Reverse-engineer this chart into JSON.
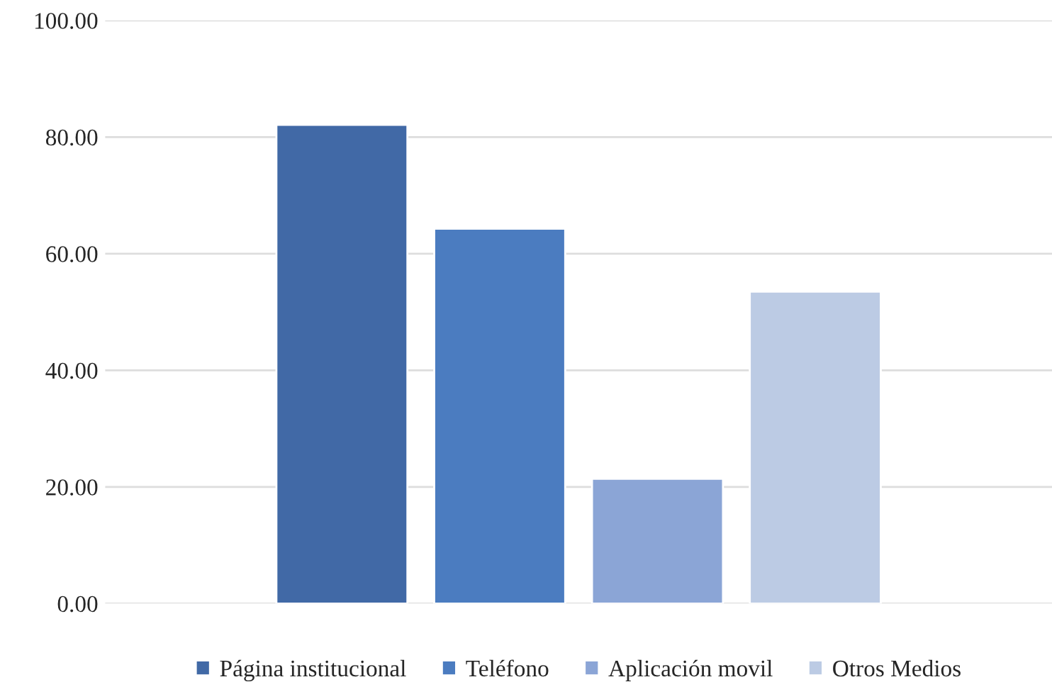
{
  "chart_data": {
    "type": "bar",
    "categories": [
      null
    ],
    "series": [
      {
        "name": "Página institucional",
        "color": "#4169a6",
        "values": [
          82.1
        ]
      },
      {
        "name": "Teléfono",
        "color": "#4b7cc0",
        "values": [
          64.3
        ]
      },
      {
        "name": "Aplicación movil",
        "color": "#8ba5d6",
        "values": [
          21.4
        ]
      },
      {
        "name": "Otros Medios",
        "color": "#bccbe4",
        "values": [
          53.5
        ]
      }
    ],
    "ylim": [
      0,
      100
    ],
    "yticks": [
      {
        "value": 0,
        "label": "0.00"
      },
      {
        "value": 20,
        "label": "20.00"
      },
      {
        "value": 40,
        "label": "40.00"
      },
      {
        "value": 60,
        "label": "60.00"
      },
      {
        "value": 80,
        "label": "80.00"
      },
      {
        "value": 100,
        "label": "100.00"
      }
    ],
    "grid": "y",
    "legend": "bottom"
  }
}
